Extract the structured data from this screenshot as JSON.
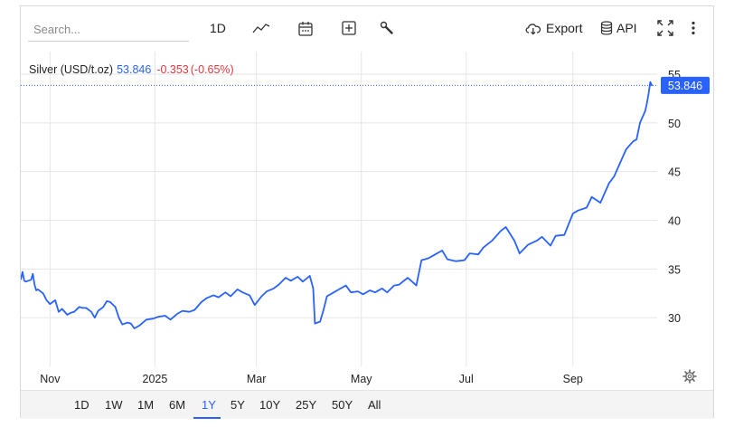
{
  "toolbar": {
    "search_placeholder": "Search...",
    "interval_label": "1D",
    "chart_type_icon": "line-chart-icon",
    "calendar_icon": "calendar-icon",
    "add_icon": "plus-square-icon",
    "tools_icon": "wrench-icon",
    "export_label": "Export",
    "export_icon": "cloud-download-icon",
    "api_label": "API",
    "api_icon": "database-icon",
    "fullscreen_icon": "fullscreen-icon",
    "more_icon": "kebab-menu-icon"
  },
  "legend": {
    "symbol": "Silver (USD/t.oz)",
    "price": "53.846",
    "change": "-0.353",
    "change_pct": "(-0.65%)"
  },
  "colors": {
    "line": "#2962ff",
    "price_tag": "#2962ff",
    "negative": "#e0393e",
    "grid": "#e6e6e6"
  },
  "chart_data": {
    "type": "line",
    "title": "",
    "xlabel": "",
    "ylabel": "",
    "ylim": [
      25,
      55
    ],
    "yticks": [
      30,
      35,
      40,
      45,
      50,
      55
    ],
    "ytick_labels": [
      "30",
      "35",
      "40",
      "45",
      "50",
      "55"
    ],
    "xlim": [
      "2024-10-15",
      "2025-10-20"
    ],
    "xticks": [
      "2024-11-01",
      "2025-01-01",
      "2025-03-01",
      "2025-05-01",
      "2025-07-01",
      "2025-09-01"
    ],
    "xtick_labels": [
      "Nov",
      "2025",
      "Mar",
      "May",
      "Jul",
      "Sep"
    ],
    "last_value_label": "53.846",
    "last_value": 53.846,
    "grid": true,
    "series": [
      {
        "x": [
          "2024-10-15",
          "2024-10-16",
          "2024-10-17",
          "2024-10-18",
          "2024-10-21",
          "2024-10-22",
          "2024-10-23",
          "2024-10-24",
          "2024-10-25",
          "2024-10-28",
          "2024-10-30",
          "2024-11-01",
          "2024-11-04",
          "2024-11-06",
          "2024-11-08",
          "2024-11-11",
          "2024-11-13",
          "2024-11-15",
          "2024-11-18",
          "2024-11-20",
          "2024-11-22",
          "2024-11-25",
          "2024-11-27",
          "2024-11-29",
          "2024-12-02",
          "2024-12-04",
          "2024-12-06",
          "2024-12-09",
          "2024-12-11",
          "2024-12-13",
          "2024-12-16",
          "2024-12-18",
          "2024-12-20",
          "2024-12-23",
          "2024-12-27",
          "2024-12-31",
          "2025-01-03",
          "2025-01-07",
          "2025-01-10",
          "2025-01-14",
          "2025-01-17",
          "2025-01-21",
          "2025-01-24",
          "2025-01-28",
          "2025-01-31",
          "2025-02-04",
          "2025-02-07",
          "2025-02-11",
          "2025-02-14",
          "2025-02-18",
          "2025-02-21",
          "2025-02-25",
          "2025-02-28",
          "2025-03-04",
          "2025-03-07",
          "2025-03-11",
          "2025-03-14",
          "2025-03-18",
          "2025-03-21",
          "2025-03-25",
          "2025-03-28",
          "2025-04-01",
          "2025-04-03",
          "2025-04-04",
          "2025-04-07",
          "2025-04-09",
          "2025-04-11",
          "2025-04-15",
          "2025-04-18",
          "2025-04-22",
          "2025-04-25",
          "2025-04-29",
          "2025-05-02",
          "2025-05-06",
          "2025-05-09",
          "2025-05-13",
          "2025-05-16",
          "2025-05-20",
          "2025-05-23",
          "2025-05-28",
          "2025-06-02",
          "2025-06-05",
          "2025-06-09",
          "2025-06-12",
          "2025-06-17",
          "2025-06-20",
          "2025-06-25",
          "2025-06-30",
          "2025-07-03",
          "2025-07-08",
          "2025-07-11",
          "2025-07-16",
          "2025-07-21",
          "2025-07-24",
          "2025-07-29",
          "2025-08-01",
          "2025-08-06",
          "2025-08-11",
          "2025-08-14",
          "2025-08-19",
          "2025-08-22",
          "2025-08-27",
          "2025-09-01",
          "2025-09-04",
          "2025-09-09",
          "2025-09-12",
          "2025-09-17",
          "2025-09-22",
          "2025-09-25",
          "2025-09-30",
          "2025-10-02",
          "2025-10-06",
          "2025-10-08",
          "2025-10-10",
          "2025-10-13",
          "2025-10-14",
          "2025-10-15",
          "2025-10-16",
          "2025-10-17"
        ],
        "values": [
          33.9,
          34.7,
          33.8,
          33.7,
          33.9,
          34.5,
          33.4,
          32.8,
          32.9,
          32.5,
          31.8,
          31.4,
          31.8,
          30.6,
          30.9,
          30.3,
          30.5,
          30.6,
          31.1,
          31.0,
          31.0,
          30.6,
          30.0,
          30.7,
          31.1,
          31.7,
          31.6,
          31.1,
          30.0,
          29.3,
          29.5,
          29.4,
          28.9,
          29.2,
          29.8,
          29.9,
          30.1,
          30.2,
          29.8,
          30.4,
          30.7,
          30.6,
          30.8,
          31.6,
          32.0,
          32.3,
          32.1,
          32.6,
          32.2,
          32.9,
          32.6,
          32.3,
          31.3,
          32.2,
          32.7,
          33.0,
          33.4,
          34.1,
          33.8,
          34.2,
          33.7,
          34.3,
          33.0,
          29.4,
          29.6,
          30.8,
          32.2,
          32.6,
          32.9,
          33.3,
          32.6,
          32.7,
          32.4,
          32.8,
          32.6,
          33.0,
          32.6,
          33.3,
          33.4,
          34.1,
          33.3,
          35.9,
          36.1,
          36.4,
          36.9,
          36.0,
          35.8,
          35.9,
          36.6,
          36.5,
          37.2,
          37.9,
          38.9,
          39.3,
          37.9,
          36.6,
          37.5,
          37.9,
          38.3,
          37.4,
          38.4,
          38.5,
          40.7,
          41.0,
          41.3,
          42.4,
          41.8,
          43.8,
          44.5,
          46.5,
          47.3,
          48.1,
          48.3,
          50.0,
          51.2,
          52.0,
          53.0,
          54.2,
          53.8
        ]
      }
    ]
  },
  "range_buttons": [
    "1D",
    "1W",
    "1M",
    "6M",
    "1Y",
    "5Y",
    "10Y",
    "25Y",
    "50Y",
    "All"
  ],
  "active_range": "1Y",
  "settings_icon": "gear-icon"
}
